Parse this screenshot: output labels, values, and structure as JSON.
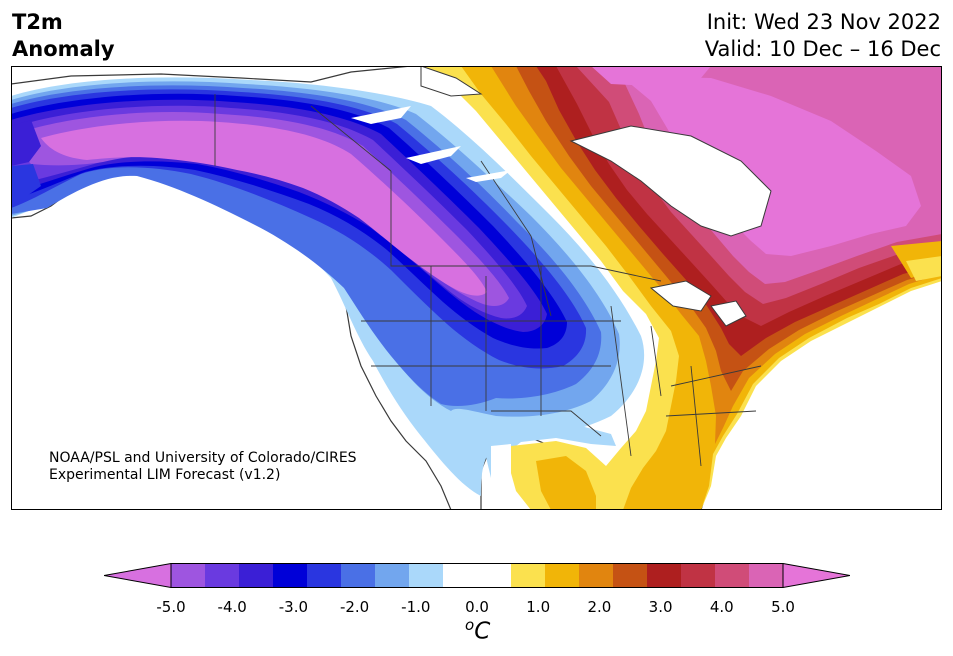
{
  "header": {
    "variable": "T2m",
    "subtitle": "Anomaly",
    "init": "Init: Wed 23 Nov 2022",
    "valid": "Valid: 10 Dec – 16 Dec"
  },
  "credit": {
    "line1": "NOAA/PSL and University of Colorado/CIRES",
    "line2": "Experimental LIM Forecast (v1.2)"
  },
  "colorbar": {
    "ticks": [
      "-5.0",
      "-4.0",
      "-3.0",
      "-2.0",
      "-1.0",
      "0.0",
      "1.0",
      "2.0",
      "3.0",
      "4.0",
      "5.0"
    ],
    "unit_sup": "o",
    "unit": "C",
    "colors": [
      "#d770e0",
      "#9e55e0",
      "#6a3ae0",
      "#3b1fd6",
      "#0000d8",
      "#2a36e0",
      "#4a70e6",
      "#72a6ee",
      "#aad8fa",
      "#ffffff",
      "#ffffff",
      "#fbe14e",
      "#f1b508",
      "#e1850f",
      "#c55214",
      "#ae1f1f",
      "#c03344",
      "#d04c78",
      "#da64b5",
      "#e574d8"
    ]
  },
  "map": {
    "region": "North America",
    "ocean_color": "#ffffff",
    "cold_core_color": "#d770e0",
    "warm_core_color": "#da64b5"
  }
}
